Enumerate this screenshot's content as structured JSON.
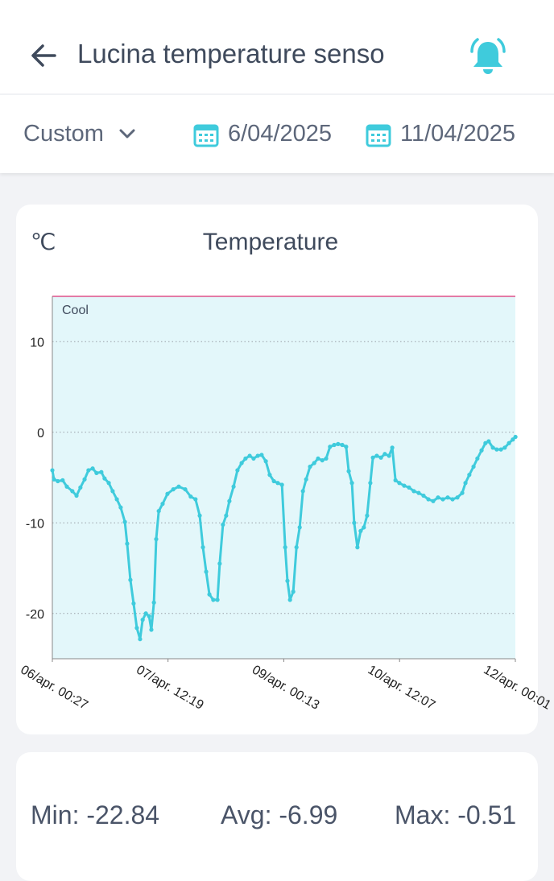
{
  "header": {
    "title": "Lucina temperature senso"
  },
  "filter": {
    "range": "Custom",
    "start_date": "6/04/2025",
    "end_date": "11/04/2025"
  },
  "chart_data": {
    "type": "line",
    "title": "Temperature",
    "y_label": "℃",
    "band": {
      "label": "Cool",
      "color": "#e3f7fa"
    },
    "threshold": {
      "value": 15,
      "color": "#e0508a"
    },
    "xlim": [
      0,
      143.57
    ],
    "ylim": [
      -25,
      15
    ],
    "xticks": [
      {
        "value": 0,
        "label": "06/apr. 00:27"
      },
      {
        "value": 35.87,
        "label": "07/apr. 12:19"
      },
      {
        "value": 71.77,
        "label": "09/apr. 00:13"
      },
      {
        "value": 107.67,
        "label": "10/apr. 12:07"
      },
      {
        "value": 143.57,
        "label": "12/apr. 00:01"
      }
    ],
    "yticks": [
      10,
      0,
      -10,
      -20
    ],
    "grid": true,
    "series": [
      {
        "name": "Temperature",
        "color": "#3fcbdc",
        "x": [
          0,
          0.5,
          1.7,
          3.2,
          4.5,
          6.2,
          7.5,
          8.7,
          10.0,
          11.2,
          12.5,
          13.7,
          15.2,
          16.2,
          17.5,
          18.7,
          20.0,
          21.2,
          22.5,
          23.2,
          24.2,
          25.2,
          26.2,
          27.2,
          28.0,
          29.0,
          30.0,
          30.7,
          31.5,
          32.2,
          33.0,
          34.2,
          35.7,
          37.5,
          39.2,
          41.2,
          42.9,
          44.4,
          45.7,
          46.7,
          47.7,
          48.7,
          49.9,
          51.2,
          51.9,
          52.9,
          53.9,
          54.9,
          56.2,
          57.4,
          58.7,
          59.9,
          61.2,
          62.4,
          63.7,
          64.9,
          66.2,
          67.4,
          68.7,
          69.9,
          71.2,
          72.2,
          72.9,
          73.7,
          74.7,
          75.7,
          76.7,
          77.7,
          78.7,
          79.9,
          81.2,
          82.4,
          83.7,
          84.9,
          86.1,
          87.4,
          88.6,
          89.9,
          91.1,
          91.9,
          92.9,
          93.6,
          94.6,
          95.6,
          96.6,
          97.6,
          98.6,
          99.4,
          100.6,
          101.9,
          103.1,
          104.4,
          105.4,
          106.4,
          107.6,
          109.1,
          110.6,
          112.1,
          113.6,
          115.1,
          116.6,
          118.1,
          119.6,
          121.1,
          122.6,
          124.1,
          125.6,
          127.1,
          128.1,
          129.3,
          130.6,
          131.8,
          133.1,
          134.3,
          135.3,
          136.6,
          137.8,
          139.1,
          140.3,
          141.6,
          142.8,
          143.6
        ],
        "values": [
          -4.2,
          -5.2,
          -5.4,
          -5.3,
          -6.0,
          -6.5,
          -7.0,
          -6.1,
          -5.2,
          -4.2,
          -4.0,
          -4.5,
          -4.4,
          -5.1,
          -5.6,
          -6.5,
          -7.4,
          -8.3,
          -9.9,
          -12.3,
          -16.3,
          -18.9,
          -21.6,
          -22.84,
          -20.7,
          -20.0,
          -20.3,
          -21.8,
          -18.8,
          -11.8,
          -8.7,
          -7.9,
          -6.8,
          -6.3,
          -6.0,
          -6.3,
          -7.1,
          -7.4,
          -9.2,
          -12.7,
          -15.4,
          -17.9,
          -18.5,
          -18.5,
          -14.5,
          -10.2,
          -9.2,
          -7.6,
          -6.0,
          -4.2,
          -3.4,
          -2.9,
          -2.6,
          -2.9,
          -2.6,
          -2.5,
          -3.2,
          -4.7,
          -5.4,
          -5.6,
          -5.8,
          -12.7,
          -16.4,
          -18.5,
          -17.6,
          -12.7,
          -10.5,
          -6.5,
          -5.2,
          -3.8,
          -3.4,
          -2.9,
          -3.1,
          -2.9,
          -1.6,
          -1.4,
          -1.3,
          -1.4,
          -1.6,
          -4.3,
          -5.6,
          -10.0,
          -12.7,
          -10.9,
          -10.5,
          -9.2,
          -5.6,
          -2.8,
          -2.6,
          -2.8,
          -2.4,
          -2.6,
          -1.7,
          -5.3,
          -5.6,
          -5.9,
          -6.1,
          -6.5,
          -6.7,
          -7.0,
          -7.4,
          -7.6,
          -7.2,
          -7.4,
          -7.2,
          -7.4,
          -7.2,
          -6.7,
          -5.6,
          -4.7,
          -3.8,
          -2.9,
          -2.0,
          -1.2,
          -1.0,
          -1.7,
          -1.9,
          -1.9,
          -1.7,
          -1.2,
          -0.8,
          -0.51
        ]
      }
    ]
  },
  "stats": [
    "Min: -22.84",
    "Avg: -6.99",
    "Max: -0.51"
  ]
}
